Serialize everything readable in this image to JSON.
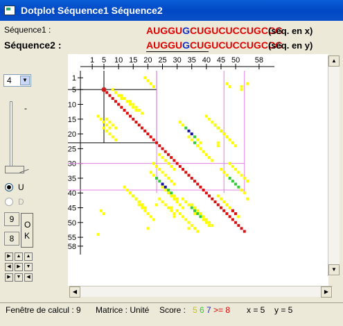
{
  "window": {
    "title": "Dotplot Séquence1 Séquence2"
  },
  "sequences": {
    "seq1_label": "Séquence1 :",
    "seq2_label": "Séquence2 :",
    "seq1_text": "AUGGUGCUGUCUCCUGCCG",
    "seq2_text": "AUGGUGCUGUCUCCUGCCG",
    "highlight_index": 5,
    "seq1_suffix": "(séq. en x)",
    "seq2_suffix": "(séq. en y)"
  },
  "controls": {
    "combo_value": "4",
    "slider_label": "-",
    "radio_u_label": "U",
    "radio_d_label": "D",
    "box_top": "9",
    "box_bottom": "8",
    "ok_label": "OK"
  },
  "axis": {
    "x_ticks": [
      "1",
      "5",
      "10",
      "15",
      "20",
      "25",
      "30",
      "35",
      "40",
      "45",
      "50",
      "58"
    ],
    "y_ticks": [
      "1",
      "5",
      "10",
      "15",
      "20",
      "25",
      "30",
      "35",
      "40",
      "45",
      "50",
      "55",
      "58"
    ]
  },
  "status": {
    "window": "Fenêtre de calcul : 9",
    "matrix": "Matrice : Unité",
    "score_label": "Score :",
    "score_values": [
      "5",
      "6",
      "7",
      ">= 8"
    ],
    "score_colors": [
      "#ffff00",
      "#33cc33",
      "#2020c0",
      "#e00000"
    ],
    "x_label": "x = 5",
    "y_label": "y = 5"
  },
  "plot": {
    "n": 58,
    "cursor": {
      "x": 5,
      "y": 5
    },
    "sel_box": {
      "x1": 5,
      "x2": 23,
      "y1": 5,
      "y2": 23
    },
    "pink_lines": {
      "v": [
        23,
        46
      ],
      "h": [
        30,
        39
      ]
    }
  }
}
